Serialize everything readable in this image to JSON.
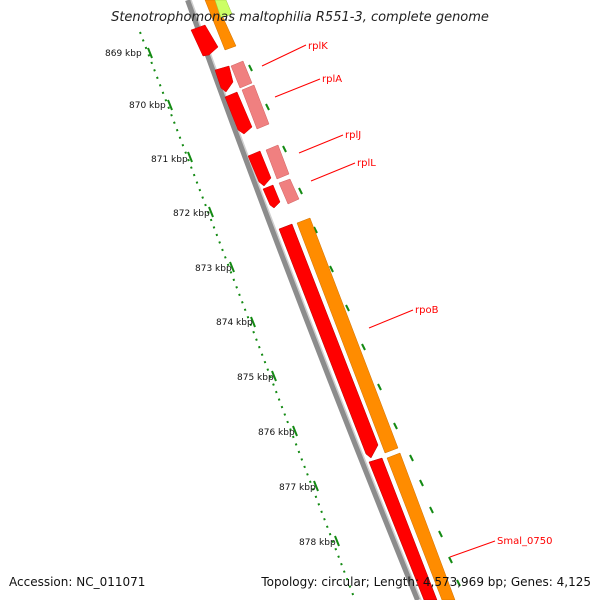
{
  "title": "Stenotrophomonas maltophilia R551-3, complete genome",
  "footer": {
    "accession": "Accession: NC_011071",
    "info": "Topology: circular; Length: 4,573,969 bp; Genes: 4,125"
  },
  "colors": {
    "gene_red": "#ff0000",
    "gene_pink": "#f08080",
    "gene_orange": "#ff8c00",
    "gene_yellowgreen": "#ccff66",
    "ruler": "#138a13",
    "backbone": "#8c8c8c",
    "callout": "#ff0000"
  },
  "ruler_ticks": [
    "869 kbp",
    "870 kbp",
    "871 kbp",
    "872 kbp",
    "873 kbp",
    "874 kbp",
    "875 kbp",
    "876 kbp",
    "877 kbp",
    "878 kbp"
  ],
  "gene_labels": [
    "rplK",
    "rplA",
    "rplJ",
    "rplL",
    "rpoB",
    "Smal_0750"
  ]
}
